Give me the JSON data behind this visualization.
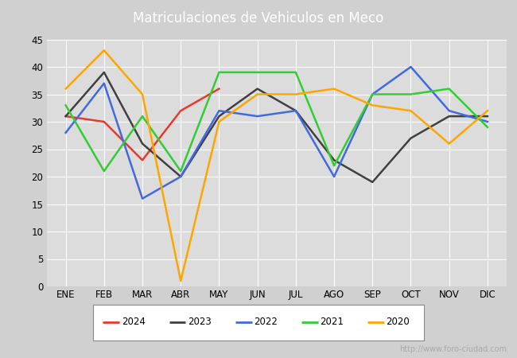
{
  "title": "Matriculaciones de Vehiculos en Meco",
  "months": [
    "ENE",
    "FEB",
    "MAR",
    "ABR",
    "MAY",
    "JUN",
    "JUL",
    "AGO",
    "SEP",
    "OCT",
    "NOV",
    "DIC"
  ],
  "series": {
    "2024": {
      "color": "#e8392a",
      "data": [
        31,
        30,
        23,
        32,
        36,
        null,
        null,
        null,
        null,
        null,
        null,
        null
      ]
    },
    "2023": {
      "color": "#404040",
      "data": [
        31,
        39,
        26,
        20,
        31,
        36,
        32,
        23,
        19,
        27,
        31,
        31
      ]
    },
    "2022": {
      "color": "#4169e1",
      "data": [
        28,
        37,
        16,
        20,
        32,
        31,
        32,
        20,
        35,
        40,
        32,
        30
      ]
    },
    "2021": {
      "color": "#32cd32",
      "data": [
        33,
        21,
        31,
        21,
        39,
        39,
        39,
        22,
        35,
        35,
        36,
        29
      ]
    },
    "2020": {
      "color": "#ffa500",
      "data": [
        36,
        43,
        35,
        1,
        30,
        35,
        35,
        36,
        33,
        32,
        26,
        32
      ]
    }
  },
  "ylim": [
    0,
    45
  ],
  "yticks": [
    0,
    5,
    10,
    15,
    20,
    25,
    30,
    35,
    40,
    45
  ],
  "figure_bg": "#d0d0d0",
  "plot_bg_color": "#dcdcdc",
  "title_bg_color": "#4f86c6",
  "title_color": "white",
  "title_fontsize": 12,
  "legend_order": [
    "2024",
    "2023",
    "2022",
    "2021",
    "2020"
  ],
  "watermark": "http://www.foro-ciudad.com",
  "grid_color": "white",
  "linewidth": 1.8
}
